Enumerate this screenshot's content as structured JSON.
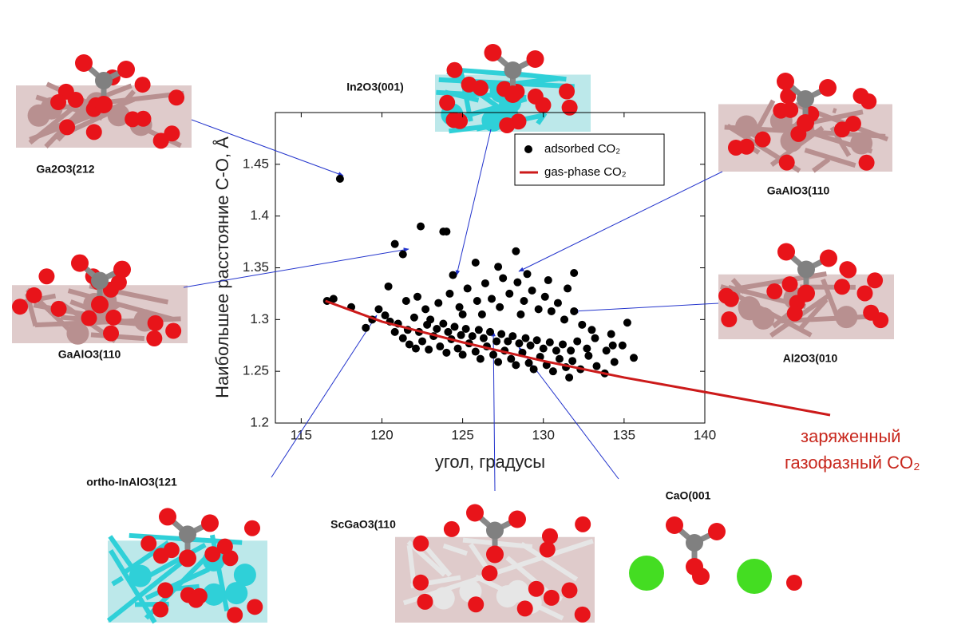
{
  "chart_data": {
    "type": "scatter",
    "xlabel": "угол, градусы",
    "ylabel": "Наибольшее расстояние C-O, Å",
    "xlim": [
      113.4,
      140
    ],
    "ylim": [
      1.2,
      1.5
    ],
    "xticks": [
      115,
      120,
      125,
      130,
      135,
      140
    ],
    "yticks": [
      1.2,
      1.25,
      1.3,
      1.35,
      1.4,
      1.45
    ],
    "legend": "upper right",
    "series": [
      {
        "name": "adsorbed CO₂",
        "color": "#000000",
        "x": [
          117.4,
          122.4,
          123.8,
          124.0,
          121.3,
          120.8,
          128.3,
          117.0,
          116.6,
          118.1,
          127.2,
          125.8,
          124.4,
          131.9,
          131.5,
          135.6,
          135.2,
          134.3,
          119.0,
          119.4,
          120.2,
          120.8,
          121.3,
          121.7,
          122.1,
          122.5,
          122.9,
          123.2,
          123.6,
          124.0,
          124.3,
          124.7,
          125.0,
          125.4,
          125.8,
          126.1,
          126.5,
          126.9,
          127.2,
          127.6,
          128.0,
          128.3,
          128.7,
          129.1,
          129.4,
          129.8,
          130.2,
          130.6,
          131.0,
          131.4,
          131.8,
          132.3,
          132.8,
          133.3,
          133.8,
          134.4,
          134.9,
          131.6,
          119.8,
          120.5,
          121.0,
          121.6,
          122.0,
          122.3,
          122.8,
          123.0,
          123.4,
          123.8,
          124.1,
          124.5,
          124.9,
          125.2,
          125.6,
          126.0,
          126.3,
          126.7,
          127.1,
          127.4,
          127.8,
          128.1,
          128.5,
          128.9,
          129.2,
          129.6,
          130.0,
          130.4,
          130.8,
          131.2,
          131.7,
          132.1,
          132.7,
          133.2,
          133.9,
          134.2,
          120.4,
          121.5,
          122.2,
          122.7,
          123.5,
          124.2,
          124.8,
          125.3,
          125.9,
          126.4,
          126.8,
          127.3,
          127.5,
          127.9,
          128.4,
          128.8,
          129.3,
          129.7,
          130.1,
          130.5,
          130.9,
          131.3,
          131.9,
          132.4,
          133.0,
          129.0,
          130.3,
          128.6,
          126.2,
          125.0
        ],
        "values": [
          1.436,
          1.39,
          1.385,
          1.385,
          1.363,
          1.373,
          1.366,
          1.32,
          1.318,
          1.312,
          1.351,
          1.355,
          1.343,
          1.345,
          1.33,
          1.263,
          1.297,
          1.275,
          1.292,
          1.3,
          1.304,
          1.288,
          1.282,
          1.276,
          1.272,
          1.279,
          1.271,
          1.284,
          1.274,
          1.268,
          1.281,
          1.272,
          1.266,
          1.277,
          1.269,
          1.262,
          1.274,
          1.266,
          1.259,
          1.27,
          1.262,
          1.256,
          1.268,
          1.258,
          1.252,
          1.264,
          1.256,
          1.25,
          1.262,
          1.254,
          1.26,
          1.252,
          1.265,
          1.255,
          1.248,
          1.259,
          1.275,
          1.244,
          1.31,
          1.298,
          1.296,
          1.29,
          1.302,
          1.288,
          1.295,
          1.3,
          1.291,
          1.296,
          1.288,
          1.293,
          1.285,
          1.291,
          1.284,
          1.29,
          1.282,
          1.288,
          1.279,
          1.286,
          1.279,
          1.284,
          1.277,
          1.282,
          1.275,
          1.28,
          1.272,
          1.278,
          1.27,
          1.276,
          1.27,
          1.279,
          1.272,
          1.282,
          1.27,
          1.286,
          1.332,
          1.318,
          1.322,
          1.31,
          1.316,
          1.325,
          1.312,
          1.33,
          1.318,
          1.335,
          1.32,
          1.312,
          1.34,
          1.325,
          1.336,
          1.318,
          1.328,
          1.31,
          1.322,
          1.308,
          1.316,
          1.3,
          1.308,
          1.295,
          1.29,
          1.344,
          1.338,
          1.305,
          1.305,
          1.305
        ]
      },
      {
        "name": "gas-phase CO₂",
        "color": "#cc1a1a",
        "type": "line",
        "x": [
          116.5,
          120,
          125,
          130,
          135,
          140
        ],
        "values": [
          1.318,
          1.298,
          1.278,
          1.26,
          1.244,
          1.23
        ]
      }
    ],
    "side_label": [
      "заряженный",
      "газофазный CO₂"
    ],
    "structures": [
      "Ga2O3(212",
      "In2O3(001)",
      "GaAlO3(110",
      "GaAlO3(110",
      "Al2O3(010",
      "ortho-InAlO3(121",
      "ScGaO3(110",
      "CaO(001"
    ]
  }
}
